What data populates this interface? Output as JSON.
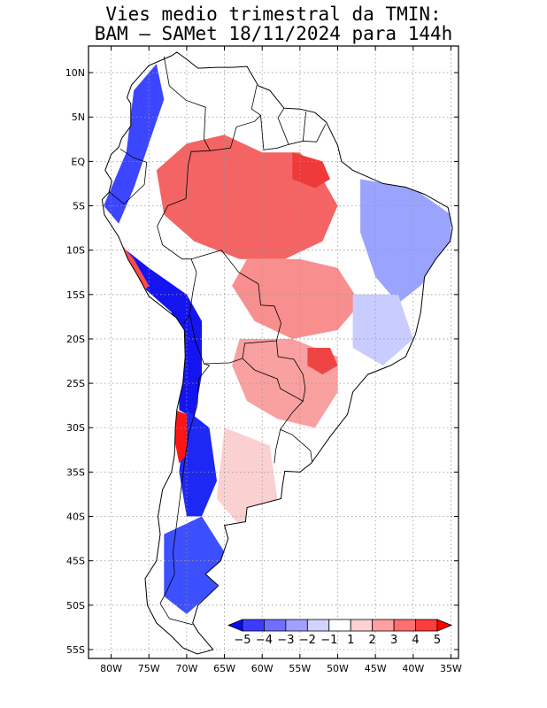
{
  "title": {
    "line1": "Vies medio trimestral da TMIN:",
    "line2": "BAM – SAMet 18/11/2024  para 144h"
  },
  "map": {
    "lon_range": [
      -83,
      -34
    ],
    "lat_range": [
      -56,
      13
    ],
    "grid": true,
    "lat_ticks": [
      {
        "value": 10,
        "label": "10N"
      },
      {
        "value": 5,
        "label": "5N"
      },
      {
        "value": 0,
        "label": "EQ"
      },
      {
        "value": -5,
        "label": "5S"
      },
      {
        "value": -10,
        "label": "10S"
      },
      {
        "value": -15,
        "label": "15S"
      },
      {
        "value": -20,
        "label": "20S"
      },
      {
        "value": -25,
        "label": "25S"
      },
      {
        "value": -30,
        "label": "30S"
      },
      {
        "value": -35,
        "label": "35S"
      },
      {
        "value": -40,
        "label": "40S"
      },
      {
        "value": -45,
        "label": "45S"
      },
      {
        "value": -50,
        "label": "50S"
      },
      {
        "value": -55,
        "label": "55S"
      }
    ],
    "lon_ticks": [
      {
        "value": -80,
        "label": "80W"
      },
      {
        "value": -75,
        "label": "75W"
      },
      {
        "value": -70,
        "label": "70W"
      },
      {
        "value": -65,
        "label": "65W"
      },
      {
        "value": -60,
        "label": "60W"
      },
      {
        "value": -55,
        "label": "55W"
      },
      {
        "value": -50,
        "label": "50W"
      },
      {
        "value": -45,
        "label": "45W"
      },
      {
        "value": -40,
        "label": "40W"
      },
      {
        "value": -35,
        "label": "35W"
      }
    ],
    "colors": {
      "land": "#ffffff",
      "coast": "#000000",
      "grid": "#999999"
    },
    "bias_regions": [
      {
        "name": "amazon-warm",
        "level": 3,
        "color": "#f46464",
        "points": [
          [
            -74,
            -1
          ],
          [
            -70,
            2
          ],
          [
            -65,
            3
          ],
          [
            -60,
            1
          ],
          [
            -55,
            1
          ],
          [
            -52,
            -2
          ],
          [
            -50,
            -5
          ],
          [
            -52,
            -9
          ],
          [
            -57,
            -11
          ],
          [
            -63,
            -11
          ],
          [
            -69,
            -9
          ],
          [
            -73,
            -6
          ]
        ]
      },
      {
        "name": "amazon-warm-core",
        "level": 4,
        "color": "#ee3a3a",
        "points": [
          [
            -56,
            1
          ],
          [
            -52,
            0
          ],
          [
            -51,
            -2
          ],
          [
            -53,
            -3
          ],
          [
            -56,
            -2
          ]
        ]
      },
      {
        "name": "central-warm",
        "level": 2,
        "color": "#f88e8e",
        "points": [
          [
            -62,
            -11
          ],
          [
            -55,
            -11
          ],
          [
            -50,
            -12
          ],
          [
            -47,
            -16
          ],
          [
            -50,
            -19
          ],
          [
            -56,
            -20
          ],
          [
            -61,
            -18
          ],
          [
            -64,
            -14
          ]
        ]
      },
      {
        "name": "south-warm",
        "level": 2,
        "color": "#f9a0a0",
        "points": [
          [
            -63,
            -20
          ],
          [
            -56,
            -20
          ],
          [
            -50,
            -22
          ],
          [
            -50,
            -26
          ],
          [
            -53,
            -30
          ],
          [
            -58,
            -29
          ],
          [
            -62,
            -27
          ],
          [
            -64,
            -23
          ]
        ]
      },
      {
        "name": "south-warm-core",
        "level": 4,
        "color": "#ee4444",
        "points": [
          [
            -54,
            -21
          ],
          [
            -51,
            -21
          ],
          [
            -50,
            -23
          ],
          [
            -52,
            -24
          ],
          [
            -54,
            -23
          ]
        ]
      },
      {
        "name": "patagonia-light",
        "level": 1,
        "color": "#fbd0d0",
        "points": [
          [
            -65,
            -30
          ],
          [
            -59,
            -32
          ],
          [
            -58,
            -38
          ],
          [
            -63,
            -41
          ],
          [
            -66,
            -38
          ]
        ]
      },
      {
        "name": "ne-brazil-cool",
        "level": -2,
        "color": "#9aa4ff",
        "points": [
          [
            -47,
            -2
          ],
          [
            -40,
            -3
          ],
          [
            -35,
            -6
          ],
          [
            -35,
            -10
          ],
          [
            -39,
            -14
          ],
          [
            -42,
            -16
          ],
          [
            -45,
            -13
          ],
          [
            -47,
            -8
          ]
        ]
      },
      {
        "name": "se-brazil-cool",
        "level": -1,
        "color": "#c8ccff",
        "points": [
          [
            -48,
            -15
          ],
          [
            -42,
            -15
          ],
          [
            -40,
            -20
          ],
          [
            -44,
            -23
          ],
          [
            -48,
            -21
          ]
        ]
      },
      {
        "name": "andes-north-cold",
        "level": -4,
        "color": "#3c46ff",
        "points": [
          [
            -81,
            -5
          ],
          [
            -78,
            1
          ],
          [
            -77,
            8
          ],
          [
            -74,
            11
          ],
          [
            -73,
            7
          ],
          [
            -75,
            2
          ],
          [
            -77,
            -3
          ],
          [
            -79,
            -7
          ]
        ]
      },
      {
        "name": "andes-central-cold",
        "level": -5,
        "color": "#1414f0",
        "points": [
          [
            -78,
            -10
          ],
          [
            -75,
            -12
          ],
          [
            -70,
            -15
          ],
          [
            -68,
            -18
          ],
          [
            -68,
            -24
          ],
          [
            -69,
            -29
          ],
          [
            -71,
            -28
          ],
          [
            -71,
            -22
          ],
          [
            -72,
            -17
          ],
          [
            -76,
            -14
          ]
        ]
      },
      {
        "name": "andes-south-cold",
        "level": -5,
        "color": "#1e28f5",
        "points": [
          [
            -70,
            -28
          ],
          [
            -67,
            -30
          ],
          [
            -66,
            -36
          ],
          [
            -68,
            -40
          ],
          [
            -70,
            -40
          ],
          [
            -71,
            -35
          ]
        ]
      },
      {
        "name": "patagonia-cold",
        "level": -4,
        "color": "#3c50ff",
        "points": [
          [
            -73,
            -42
          ],
          [
            -68,
            -40
          ],
          [
            -65,
            -44
          ],
          [
            -66,
            -48
          ],
          [
            -70,
            -51
          ],
          [
            -73,
            -49
          ]
        ]
      },
      {
        "name": "andes-south-warm",
        "level": 5,
        "color": "#ff1414",
        "points": [
          [
            -71.5,
            -28
          ],
          [
            -70,
            -28.5
          ],
          [
            -70,
            -33
          ],
          [
            -71,
            -34
          ],
          [
            -71.7,
            -31
          ]
        ]
      },
      {
        "name": "peru-coast-warm",
        "level": 4,
        "color": "#ff4a4a",
        "points": [
          [
            -79,
            -9
          ],
          [
            -77,
            -11
          ],
          [
            -75,
            -14
          ],
          [
            -76,
            -15
          ],
          [
            -78,
            -12
          ]
        ]
      }
    ],
    "coastline": [
      [
        -77.3,
        8.6
      ],
      [
        -75,
        10.8
      ],
      [
        -72,
        11.9
      ],
      [
        -71.3,
        12.3
      ],
      [
        -70,
        11.5
      ],
      [
        -68.5,
        10.5
      ],
      [
        -66,
        10.6
      ],
      [
        -64,
        10.6
      ],
      [
        -62,
        10.7
      ],
      [
        -60.5,
        8.5
      ],
      [
        -59,
        8
      ],
      [
        -57.1,
        6
      ],
      [
        -55,
        5.9
      ],
      [
        -53,
        5.5
      ],
      [
        -51.5,
        4.4
      ],
      [
        -50,
        1.8
      ],
      [
        -49.5,
        0
      ],
      [
        -48,
        -1
      ],
      [
        -44,
        -2.5
      ],
      [
        -41,
        -2.9
      ],
      [
        -38.5,
        -3.7
      ],
      [
        -35.4,
        -5.2
      ],
      [
        -34.8,
        -7.5
      ],
      [
        -35.1,
        -9
      ],
      [
        -37,
        -11
      ],
      [
        -38.5,
        -13
      ],
      [
        -39,
        -17
      ],
      [
        -39.7,
        -19.5
      ],
      [
        -41,
        -22
      ],
      [
        -43,
        -23
      ],
      [
        -46,
        -24
      ],
      [
        -48,
        -26
      ],
      [
        -48.7,
        -28.5
      ],
      [
        -51,
        -31
      ],
      [
        -53.5,
        -34
      ],
      [
        -55,
        -35
      ],
      [
        -57,
        -34.9
      ],
      [
        -57.3,
        -36.5
      ],
      [
        -57.5,
        -38
      ],
      [
        -62,
        -39
      ],
      [
        -62.2,
        -40.6
      ],
      [
        -65,
        -41
      ],
      [
        -64.5,
        -42.5
      ],
      [
        -65.5,
        -45
      ],
      [
        -67.5,
        -46.5
      ],
      [
        -65.8,
        -47.8
      ],
      [
        -68.5,
        -50
      ],
      [
        -69.2,
        -52
      ],
      [
        -68.5,
        -53
      ],
      [
        -66.5,
        -55
      ],
      [
        -68.6,
        -55.5
      ],
      [
        -70.5,
        -54.8
      ],
      [
        -72,
        -53.5
      ],
      [
        -74,
        -52
      ],
      [
        -75.2,
        -50
      ],
      [
        -75.5,
        -47
      ],
      [
        -74,
        -45
      ],
      [
        -73.5,
        -42
      ],
      [
        -73.8,
        -40
      ],
      [
        -73.2,
        -37
      ],
      [
        -72,
        -35
      ],
      [
        -71.6,
        -33
      ],
      [
        -71.5,
        -30
      ],
      [
        -71.3,
        -28
      ],
      [
        -70.5,
        -25
      ],
      [
        -70.2,
        -22
      ],
      [
        -70.3,
        -19
      ],
      [
        -71.4,
        -17.6
      ],
      [
        -75,
        -15.2
      ],
      [
        -76.4,
        -13
      ],
      [
        -77.8,
        -11
      ],
      [
        -79,
        -8.5
      ],
      [
        -80.9,
        -6
      ],
      [
        -81.2,
        -4.3
      ],
      [
        -80.3,
        -3.5
      ],
      [
        -79.9,
        -2.2
      ],
      [
        -80.8,
        -1
      ],
      [
        -80,
        0.8
      ],
      [
        -79,
        1.6
      ],
      [
        -78.6,
        2.6
      ],
      [
        -77.4,
        4
      ],
      [
        -77.4,
        6.5
      ],
      [
        -77.9,
        7.2
      ]
    ],
    "borders": [
      [
        [
          -73,
          11.8
        ],
        [
          -72.3,
          8.5
        ],
        [
          -70.1,
          6.9
        ],
        [
          -67.5,
          6.1
        ],
        [
          -67.7,
          2.5
        ],
        [
          -66.9,
          1.2
        ]
      ],
      [
        [
          -66.9,
          1.2
        ],
        [
          -69.4,
          1.1
        ],
        [
          -69.8,
          -0.4
        ],
        [
          -70.1,
          -4.2
        ],
        [
          -72.5,
          -5
        ],
        [
          -73.9,
          -7.3
        ],
        [
          -73.2,
          -9.4
        ],
        [
          -70.6,
          -11
        ],
        [
          -69.4,
          -11
        ],
        [
          -68.7,
          -12.5
        ],
        [
          -69.2,
          -14.8
        ],
        [
          -69.6,
          -17.2
        ],
        [
          -70.4,
          -18.3
        ]
      ],
      [
        [
          -78.8,
          1.4
        ],
        [
          -77,
          0.4
        ],
        [
          -75.3,
          -0.1
        ],
        [
          -75.6,
          -2.6
        ],
        [
          -78.3,
          -4.8
        ],
        [
          -80.3,
          -3.4
        ]
      ],
      [
        [
          -69.6,
          -17.2
        ],
        [
          -68.8,
          -20.4
        ],
        [
          -67.7,
          -22.8
        ],
        [
          -67,
          -23
        ],
        [
          -68.4,
          -24.5
        ],
        [
          -68.6,
          -27.5
        ],
        [
          -69.7,
          -30.5
        ],
        [
          -70.3,
          -34
        ],
        [
          -70.6,
          -36
        ],
        [
          -71.2,
          -40
        ],
        [
          -71.8,
          -44
        ],
        [
          -71.6,
          -46.5
        ],
        [
          -72.7,
          -48.5
        ],
        [
          -73.5,
          -49.8
        ],
        [
          -72.3,
          -51.5
        ],
        [
          -69.2,
          -52.2
        ]
      ],
      [
        [
          -69.4,
          -11
        ],
        [
          -65.4,
          -10
        ],
        [
          -63.1,
          -12.5
        ],
        [
          -60.5,
          -13.8
        ],
        [
          -60.2,
          -16.2
        ],
        [
          -58.4,
          -16.3
        ],
        [
          -57.5,
          -18.2
        ],
        [
          -58.1,
          -20.2
        ],
        [
          -62.3,
          -20.5
        ],
        [
          -62.6,
          -22.2
        ],
        [
          -64.3,
          -22.7
        ],
        [
          -67.7,
          -22.8
        ]
      ],
      [
        [
          -62.6,
          -22.2
        ],
        [
          -61,
          -23.5
        ],
        [
          -58,
          -24.5
        ],
        [
          -57.6,
          -25.6
        ],
        [
          -54.6,
          -27
        ],
        [
          -54.3,
          -25.6
        ],
        [
          -54.6,
          -24
        ],
        [
          -55.8,
          -22.3
        ],
        [
          -57.9,
          -22
        ],
        [
          -58.1,
          -20.2
        ]
      ],
      [
        [
          -54.6,
          -27
        ],
        [
          -56,
          -28.3
        ],
        [
          -57.6,
          -30.2
        ],
        [
          -56,
          -30.8
        ],
        [
          -53.6,
          -32.6
        ],
        [
          -53.4,
          -33.8
        ]
      ],
      [
        [
          -57.6,
          -30.2
        ],
        [
          -58.2,
          -32.5
        ],
        [
          -58.4,
          -34
        ]
      ],
      [
        [
          -66.9,
          1.2
        ],
        [
          -64.2,
          1.5
        ],
        [
          -63.4,
          3.9
        ],
        [
          -61,
          4.5
        ],
        [
          -60.2,
          5.2
        ],
        [
          -61.4,
          5.9
        ],
        [
          -60.7,
          8.6
        ]
      ],
      [
        [
          -60.2,
          5.2
        ],
        [
          -59.8,
          1.3
        ],
        [
          -58,
          1.5
        ],
        [
          -56.5,
          1.9
        ],
        [
          -54.6,
          2.3
        ],
        [
          -52.8,
          2.2
        ],
        [
          -51.6,
          4.2
        ]
      ],
      [
        [
          -56.5,
          1.9
        ],
        [
          -57.9,
          4.9
        ],
        [
          -57.1,
          6
        ]
      ],
      [
        [
          -54.6,
          2.3
        ],
        [
          -54.2,
          5.6
        ]
      ]
    ],
    "colorbar": {
      "labels": [
        "−5",
        "−4",
        "−3",
        "−2",
        "−1",
        "1",
        "2",
        "3",
        "4",
        "5"
      ],
      "colors": [
        "#0a0aff",
        "#3c3cff",
        "#6f6fff",
        "#a0a0ff",
        "#d2d2ff",
        "#ffffff",
        "#ffd2d2",
        "#ffa0a0",
        "#ff6f6f",
        "#ff3c3c",
        "#ff0000"
      ]
    }
  }
}
